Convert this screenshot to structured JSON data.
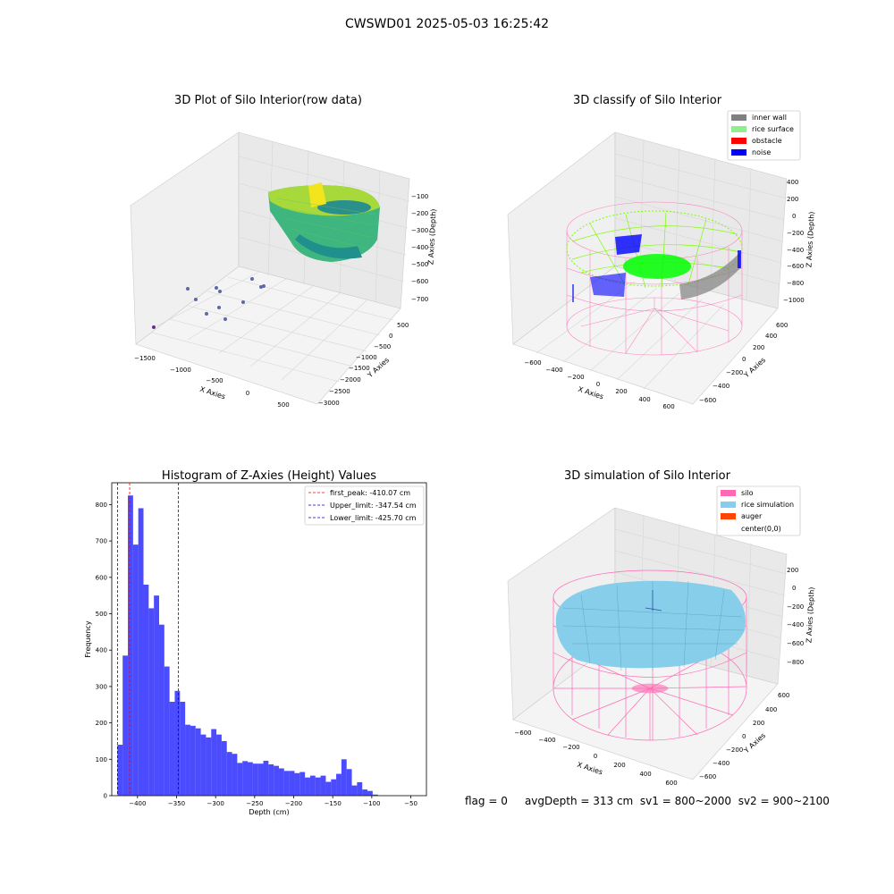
{
  "figure_title": "CWSWD01 2025-05-03 16:25:42",
  "status": {
    "flag": "flag = 0",
    "avg_depth": "avgDepth = 313 cm",
    "sv1": "sv1 = 800~2000",
    "sv2": "sv2 = 900~2100"
  },
  "colors": {
    "hist_bar": "#0000ff",
    "first_peak": "#ff0000",
    "limits": "#0000cc",
    "inner_wall": "#808080",
    "rice_surface": "#90ee90",
    "obstacle": "#ff0000",
    "noise": "#0000ff",
    "silo": "#ff69b4",
    "rice_simulation": "#87ceeb",
    "auger": "#ff4500"
  },
  "panels": {
    "raw": {
      "title": "3D Plot of Silo Interior(row data)",
      "xlabel": "X Axies",
      "ylabel": "Y Axies",
      "zlabel": "Z Axies (Depth)",
      "x_ticks": [
        "−1500",
        "−1000",
        "−500",
        "0",
        "500"
      ],
      "y_ticks": [
        "500",
        "0",
        "−500",
        "−1000",
        "−1500",
        "−2000",
        "−2500",
        "−3000"
      ],
      "z_ticks": [
        "−100",
        "−200",
        "−300",
        "−400",
        "−500",
        "−600",
        "−700"
      ]
    },
    "classify": {
      "title": "3D classify of Silo Interior",
      "xlabel": "X Axies",
      "ylabel": "Y Axies",
      "zlabel": "Z Axies (Depth)",
      "x_ticks": [
        "−600",
        "−400",
        "−200",
        "0",
        "200",
        "400",
        "600"
      ],
      "y_ticks": [
        "600",
        "400",
        "200",
        "0",
        "−200",
        "−400",
        "−600"
      ],
      "z_ticks": [
        "400",
        "200",
        "0",
        "−200",
        "−400",
        "−600",
        "−800",
        "−1000"
      ],
      "legend": [
        "inner wall",
        "rice surface",
        "obstacle",
        "noise"
      ]
    },
    "simulation": {
      "title": "3D simulation of Silo Interior",
      "xlabel": "X Axies",
      "ylabel": "Y Axies",
      "zlabel": "Z Axies (Depth)",
      "x_ticks": [
        "−600",
        "−400",
        "−200",
        "0",
        "200",
        "400",
        "600"
      ],
      "y_ticks": [
        "600",
        "400",
        "200",
        "0",
        "−200",
        "−400",
        "−600"
      ],
      "z_ticks": [
        "200",
        "0",
        "−200",
        "−400",
        "−600",
        "−800"
      ],
      "legend": [
        "silo",
        "rice simulation",
        "auger",
        "center(0,0)"
      ]
    }
  },
  "chart_data": [
    {
      "type": "bar",
      "title": "Histogram of Z-Axies (Height) Values",
      "xlabel": "Depth (cm)",
      "ylabel": "Frequency",
      "xlim": [
        -433,
        -30
      ],
      "ylim": [
        0,
        860
      ],
      "x_ticks": [
        -400,
        -350,
        -300,
        -250,
        -200,
        -150,
        -100,
        -50
      ],
      "y_ticks": [
        0,
        100,
        200,
        300,
        400,
        500,
        600,
        700,
        800
      ],
      "bin_start": -425.7,
      "bin_width": 6.67,
      "values": [
        140,
        385,
        825,
        690,
        790,
        580,
        515,
        550,
        470,
        355,
        258,
        288,
        258,
        195,
        192,
        185,
        168,
        160,
        183,
        168,
        150,
        120,
        115,
        90,
        95,
        92,
        88,
        88,
        96,
        86,
        82,
        75,
        68,
        68,
        62,
        65,
        50,
        55,
        50,
        55,
        38,
        45,
        60,
        100,
        73,
        28,
        37,
        17,
        13,
        3
      ],
      "lines": [
        {
          "label": "first_peak: -410.07 cm",
          "x": -410.07,
          "color": "red"
        },
        {
          "label": "Upper_limit: -347.54 cm",
          "x": -347.54,
          "color": "blue"
        },
        {
          "label": "Lower_limit: -425.70 cm",
          "x": -425.7,
          "color": "blue"
        }
      ],
      "legend": "top-right",
      "grid": false
    }
  ]
}
